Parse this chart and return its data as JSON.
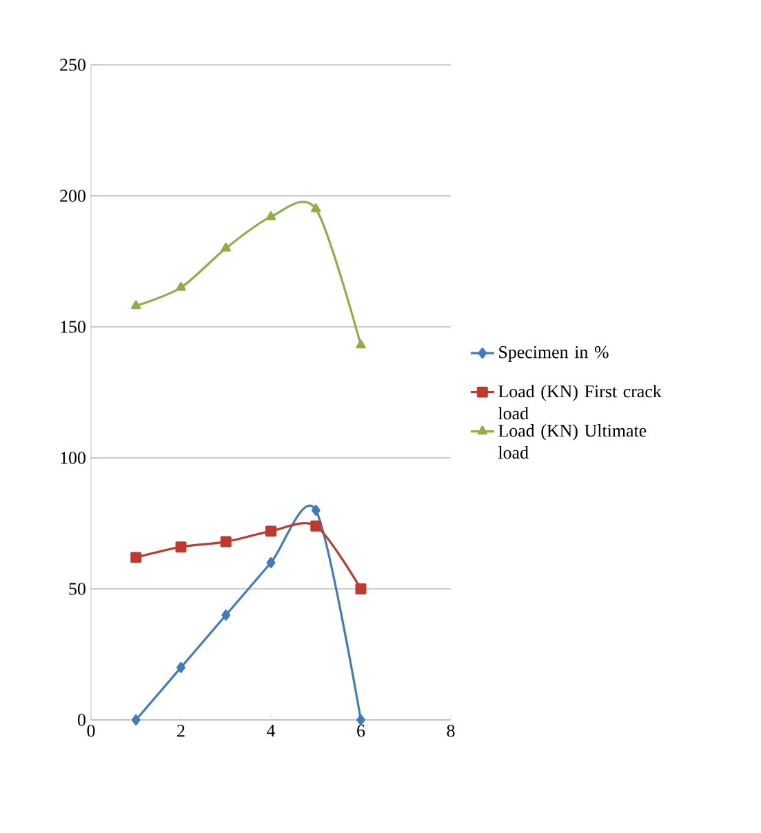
{
  "chart_data": {
    "type": "line",
    "x": [
      1,
      2,
      3,
      4,
      5,
      6
    ],
    "xlim": [
      0,
      8
    ],
    "xticks": [
      0,
      2,
      4,
      6,
      8
    ],
    "ylim": [
      0,
      250
    ],
    "yticks": [
      0,
      50,
      100,
      150,
      200,
      250
    ],
    "grid": "y",
    "legend": "right",
    "series": [
      {
        "name": "Specimen in %",
        "color": "#3e7bbf",
        "marker": "diamond",
        "values": [
          0,
          20,
          40,
          60,
          80,
          0
        ]
      },
      {
        "name": "Load (KN) First crack load",
        "color": "#c0392b",
        "marker": "square",
        "values": [
          62,
          66,
          68,
          72,
          74,
          50
        ]
      },
      {
        "name": "Load (KN) Ultimate load",
        "color": "#8db043",
        "marker": "triangle",
        "values": [
          158,
          165,
          180,
          192,
          195,
          143
        ]
      }
    ]
  }
}
